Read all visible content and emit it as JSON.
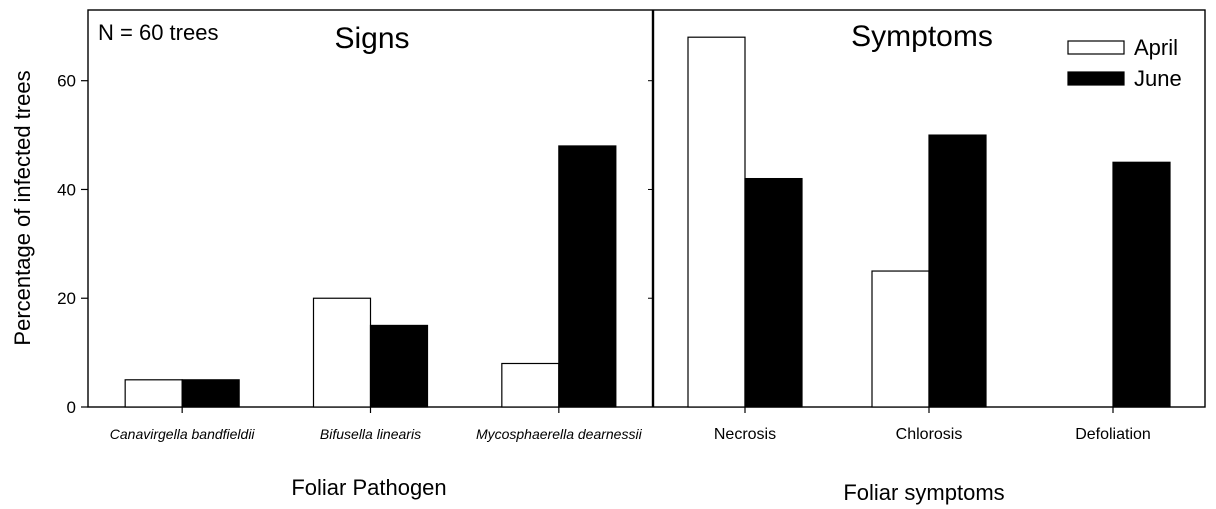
{
  "ylabel": "Percentage of infected trees",
  "n_label": "N = 60 trees",
  "legend": {
    "placement": "top-right",
    "items": [
      "April",
      "June"
    ]
  },
  "colors": {
    "April": "#ffffff",
    "June": "#000000",
    "axis": "#000000"
  },
  "chart_data": [
    {
      "type": "bar",
      "title": "Signs",
      "xlabel": "Foliar Pathogen",
      "ylabel": "Percentage of infected trees",
      "categories": [
        "Canavirgella bandfieldii",
        "Bifusella linearis",
        "Mycosphaerella dearnessii"
      ],
      "category_style": "italic",
      "series": [
        {
          "name": "April",
          "values": [
            5,
            20,
            8
          ]
        },
        {
          "name": "June",
          "values": [
            5,
            15,
            48
          ]
        }
      ],
      "ylim": [
        0,
        73
      ],
      "yticks": [
        0,
        20,
        40,
        60
      ],
      "grid": false
    },
    {
      "type": "bar",
      "title": "Symptoms",
      "xlabel": "Foliar symptoms",
      "categories": [
        "Necrosis",
        "Chlorosis",
        "Defoliation"
      ],
      "category_style": "normal",
      "series": [
        {
          "name": "April",
          "values": [
            68,
            25,
            0
          ]
        },
        {
          "name": "June",
          "values": [
            42,
            50,
            45
          ]
        }
      ],
      "ylim": [
        0,
        73
      ],
      "yticks": [
        0,
        20,
        40,
        60
      ],
      "grid": false
    }
  ]
}
